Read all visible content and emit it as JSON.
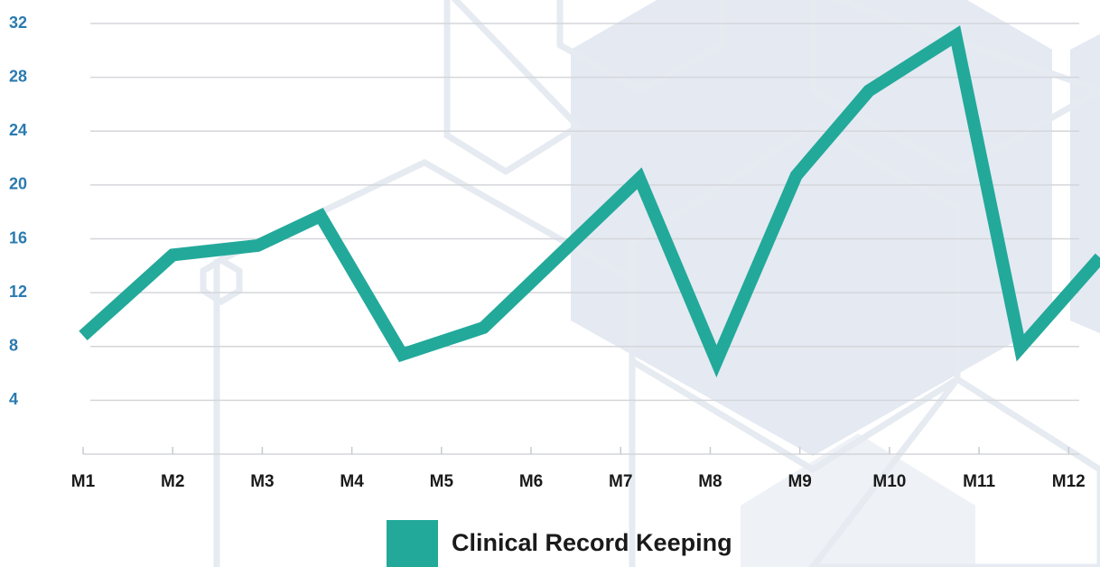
{
  "chart_data": {
    "type": "line",
    "x": [
      1.0,
      2.0,
      2.95,
      3.65,
      4.56,
      5.47,
      7.21,
      8.07,
      8.96,
      9.77,
      10.74,
      11.46,
      12.35
    ],
    "series": [
      {
        "name": "Clinical Record Keeping",
        "color": "#22a99a",
        "values": [
          8.8,
          14.8,
          15.5,
          17.7,
          7.4,
          9.4,
          20.5,
          6.9,
          20.7,
          27.0,
          31.1,
          7.9,
          14.6
        ]
      }
    ],
    "xlim": [
      1,
      12.35
    ],
    "xticks": [
      {
        "value": 1,
        "label": "M1"
      },
      {
        "value": 2,
        "label": "M2"
      },
      {
        "value": 3,
        "label": "M3"
      },
      {
        "value": 4,
        "label": "M4"
      },
      {
        "value": 5,
        "label": "M5"
      },
      {
        "value": 6,
        "label": "M6"
      },
      {
        "value": 7,
        "label": "M7"
      },
      {
        "value": 8,
        "label": "M8"
      },
      {
        "value": 9,
        "label": "M9"
      },
      {
        "value": 10,
        "label": "M10"
      },
      {
        "value": 11,
        "label": "M11"
      },
      {
        "value": 12,
        "label": "M12"
      }
    ],
    "ylim": [
      0,
      32
    ],
    "yticks": [
      4,
      8,
      12,
      16,
      20,
      24,
      28,
      32
    ],
    "grid": true
  }
}
